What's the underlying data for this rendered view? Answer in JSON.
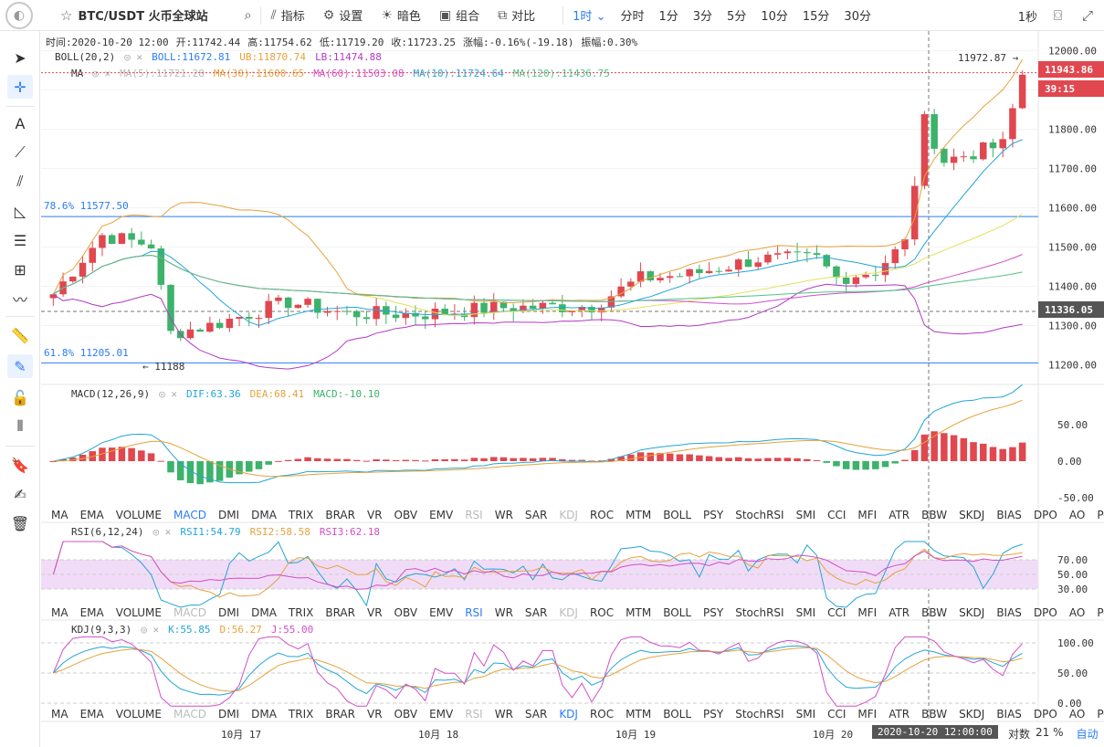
{
  "toolbar": {
    "logo_icon": "exchange-logo-icon",
    "symbol": "BTC/USDT 火币全球站",
    "indicators": "指标",
    "settings": "设置",
    "dark": "暗色",
    "group": "组合",
    "compare": "对比",
    "interval_selected": "1时",
    "periods": [
      "分时",
      "1分",
      "3分",
      "5分",
      "10分",
      "15分",
      "30分"
    ],
    "countdown": "1秒"
  },
  "info_line": {
    "time": "时间:2020-10-20 12:00",
    "open": "开:11742.44",
    "high": "高:11754.62",
    "low": "低:11719.20",
    "close": "收:11723.25",
    "change": "涨幅:-0.16%(-19.18)",
    "amplitude": "振幅:0.30%"
  },
  "legends": {
    "boll_name": "BOLL(20,2)",
    "boll": "BOLL:11672.81",
    "ub": "UB:11870.74",
    "lb": "LB:11474.88",
    "ma_name": "MA",
    "ma5": "MA(5):11721.28",
    "ma30": "MA(30):11600.65",
    "ma60": "MA(60):11503.08",
    "ma10": "MA(10):11724.64",
    "ma120": "MA(120):11436.75",
    "macd_name": "MACD(12,26,9)",
    "dif": "DIF:63.36",
    "dea": "DEA:68.41",
    "macd": "MACD:-10.10",
    "rsi_name": "RSI(6,12,24)",
    "rsi1": "RSI1:54.79",
    "rsi2": "RSI2:58.58",
    "rsi3": "RSI3:62.18",
    "kdj_name": "KDJ(9,3,3)",
    "k": "K:55.85",
    "d": "D:56.27",
    "j": "J:55.00"
  },
  "indicator_tabs": [
    "MA",
    "EMA",
    "VOLUME",
    "MACD",
    "DMI",
    "DMA",
    "TRIX",
    "BRAR",
    "VR",
    "OBV",
    "EMV",
    "RSI",
    "WR",
    "SAR",
    "KDJ",
    "ROC",
    "MTM",
    "BOLL",
    "PSY",
    "StochRSI",
    "SMI",
    "CCI",
    "MFI",
    "ATR",
    "BBW",
    "SKDJ",
    "BIAS",
    "DPO",
    "AO",
    "Position"
  ],
  "main_axis_labels": [
    "12000.00",
    "11900.00",
    "11800.00",
    "11700.00",
    "11600.00",
    "11500.00",
    "11400.00",
    "11300.00",
    "11200.00"
  ],
  "macd_axis_labels": [
    "50.00",
    "0.00",
    "-50.00"
  ],
  "rsi_axis_labels": [
    "70.00",
    "50.00",
    "30.00"
  ],
  "kdj_axis_labels": [
    "100.00",
    "50.00",
    "0.00"
  ],
  "price_tags": {
    "last": "11943.86",
    "timer": "39:15",
    "crosshair": "11336.05",
    "high_mark": "11972.87 →",
    "low_mark": "← 11188"
  },
  "fib": {
    "upper": "78.6% 11577.50",
    "lower": "61.8% 11205.01"
  },
  "x_labels": [
    "10月 17",
    "10月 18",
    "10月 19",
    "10月 20"
  ],
  "crosshair_time": "2020-10-20 12:00:00",
  "bottom_right": {
    "scale": "对数",
    "percent": "21 %",
    "auto": "自动"
  },
  "colors": {
    "up": "#e0474f",
    "down": "#3db26a",
    "accent": "#2a7cf6",
    "boll_mid": "#e6a23c",
    "boll_band": "#b33ac4"
  },
  "chart_data": {
    "type": "candlestick",
    "title": "BTC/USDT 1H",
    "ylim": [
      11150,
      12050
    ],
    "x_range": [
      "2020-10-16 09:00",
      "2020-10-20 13:00"
    ],
    "candles_approx": [
      [
        11370,
        11400,
        11360,
        11385
      ],
      [
        11385,
        11420,
        11370,
        11405
      ],
      [
        11405,
        11440,
        11395,
        11430
      ],
      [
        11430,
        11480,
        11420,
        11470
      ],
      [
        11470,
        11520,
        11460,
        11510
      ],
      [
        11510,
        11580,
        11480,
        11540
      ],
      [
        11540,
        11550,
        11490,
        11500
      ],
      [
        11500,
        11530,
        11470,
        11490
      ],
      [
        11490,
        11520,
        11480,
        11510
      ],
      [
        11510,
        11540,
        11500,
        11530
      ],
      [
        11530,
        11535,
        11500,
        11510
      ],
      [
        11510,
        11530,
        11440,
        11450
      ],
      [
        11450,
        11520,
        11188,
        11280
      ],
      [
        11280,
        11330,
        11250,
        11320
      ],
      [
        11320,
        11340,
        11280,
        11300
      ],
      [
        11300,
        11330,
        11270,
        11310
      ],
      [
        11310,
        11340,
        11290,
        11330
      ],
      [
        11330,
        11380,
        11310,
        11370
      ],
      [
        11370,
        11380,
        11340,
        11360
      ],
      [
        11360,
        11380,
        11330,
        11345
      ]
    ]
  }
}
